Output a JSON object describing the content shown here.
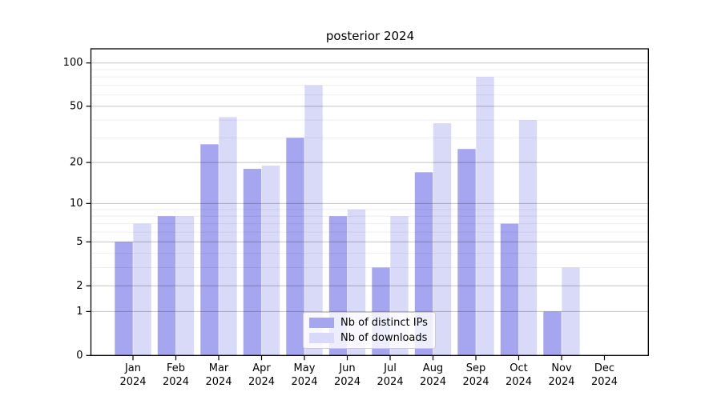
{
  "figure": {
    "title": "posterior 2024"
  },
  "colors": {
    "ips_bar": "#a5a5f0",
    "downloads_bar": "#d9d9f8",
    "axis": "#000000",
    "grid_major": "rgba(0,0,0,0.24)",
    "grid_minor": "rgba(0,0,0,0.065)",
    "legend_border": "#cccccc",
    "text": "#000000"
  },
  "legend": {
    "items": [
      {
        "label": "Nb of distinct IPs",
        "color": "#a5a5f0"
      },
      {
        "label": "Nb of downloads",
        "color": "#d9d9f8"
      }
    ]
  },
  "chart_data": {
    "type": "bar",
    "title": "posterior 2024",
    "categories": [
      "Jan 2024",
      "Feb 2024",
      "Mar 2024",
      "Apr 2024",
      "May 2024",
      "Jun 2024",
      "Jul 2024",
      "Aug 2024",
      "Sep 2024",
      "Oct 2024",
      "Nov 2024",
      "Dec 2024"
    ],
    "x_tick_line1": [
      "Jan",
      "Feb",
      "Mar",
      "Apr",
      "May",
      "Jun",
      "Jul",
      "Aug",
      "Sep",
      "Oct",
      "Nov",
      "Dec"
    ],
    "x_tick_line2": "2024",
    "series": [
      {
        "name": "Nb of distinct IPs",
        "color": "#a5a5f0",
        "values": [
          5,
          8,
          27,
          18,
          30,
          8,
          3,
          17,
          25,
          7,
          1,
          0
        ]
      },
      {
        "name": "Nb of downloads",
        "color": "#d9d9f8",
        "values": [
          7,
          8,
          42,
          19,
          70,
          9,
          8,
          38,
          80,
          40,
          3,
          0
        ]
      }
    ],
    "y_axis": {
      "scale": "log1p",
      "major_ticks": [
        0,
        1,
        2,
        5,
        10,
        20,
        50,
        100
      ],
      "minor_ticks": [
        3,
        4,
        6,
        7,
        8,
        9,
        30,
        40,
        60,
        70,
        80,
        90
      ],
      "range_top": 110
    },
    "grid": true,
    "legend_position": "bottom-center"
  }
}
